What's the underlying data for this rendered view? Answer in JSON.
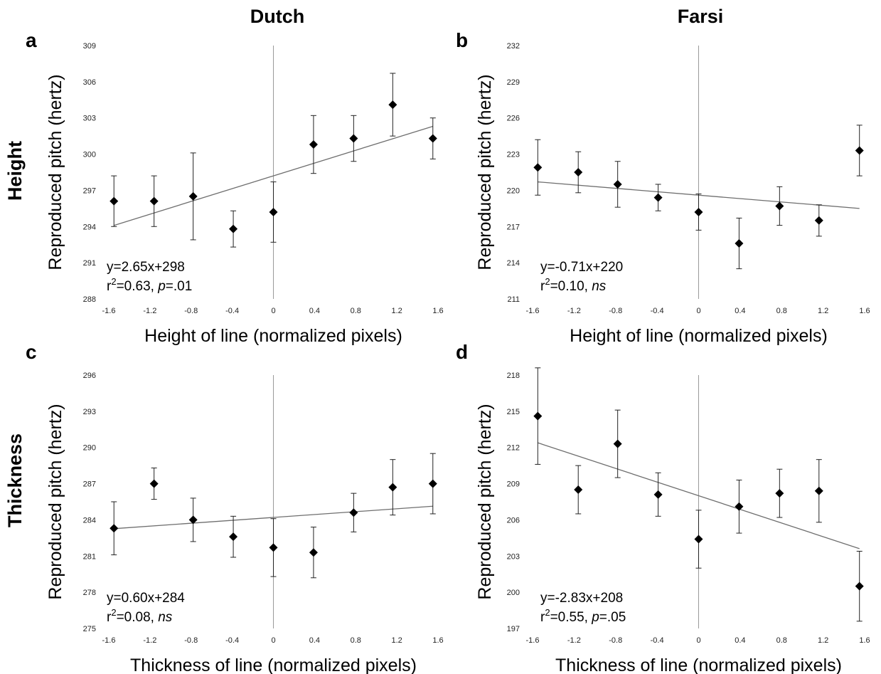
{
  "column_headers": [
    "Dutch",
    "Farsi"
  ],
  "row_headers": [
    "Height",
    "Thickness"
  ],
  "chart_data": [
    {
      "panel": "a",
      "type": "scatter",
      "xlabel": "Height of line (normalized pixels)",
      "ylabel": "Reproduced pitch (hertz)",
      "xlim": [
        -1.6,
        1.6
      ],
      "ylim": [
        288,
        309
      ],
      "x_ticks": [
        "-1.6",
        "-1.2",
        "-0.8",
        "-0.4",
        "0",
        "0.4",
        "0.8",
        "1.2",
        "1.6"
      ],
      "y_ticks": [
        "288",
        "291",
        "294",
        "297",
        "300",
        "303",
        "306",
        "309"
      ],
      "points": [
        {
          "x": -1.55,
          "y": 296.1,
          "err": 2.1
        },
        {
          "x": -1.16,
          "y": 296.1,
          "err": 2.1
        },
        {
          "x": -0.78,
          "y": 296.5,
          "err": 3.6
        },
        {
          "x": -0.39,
          "y": 293.8,
          "err": 1.5
        },
        {
          "x": 0.0,
          "y": 295.2,
          "err": 2.5
        },
        {
          "x": 0.39,
          "y": 300.8,
          "err": 2.4
        },
        {
          "x": 0.78,
          "y": 301.3,
          "err": 1.9
        },
        {
          "x": 1.16,
          "y": 304.1,
          "err": 2.6
        },
        {
          "x": 1.55,
          "y": 301.3,
          "err": 1.7
        }
      ],
      "fit": {
        "slope": 2.65,
        "intercept": 298.2
      },
      "equation": "y=2.65x+298",
      "stats": {
        "r2_prefix": "r",
        "r2_sup": "2",
        "r2_value": "=0.63, ",
        "p_label": "p",
        "p_value": "=.01"
      }
    },
    {
      "panel": "b",
      "type": "scatter",
      "xlabel": "Height of line (normalized pixels)",
      "ylabel": "Reproduced pitch (hertz)",
      "xlim": [
        -1.6,
        1.6
      ],
      "ylim": [
        211,
        232
      ],
      "x_ticks": [
        "-1.6",
        "-1.2",
        "-0.8",
        "-0.4",
        "0",
        "0.4",
        "0.8",
        "1.2",
        "1.6"
      ],
      "y_ticks": [
        "211",
        "214",
        "217",
        "220",
        "223",
        "226",
        "229",
        "232"
      ],
      "points": [
        {
          "x": -1.55,
          "y": 221.9,
          "err": 2.3
        },
        {
          "x": -1.16,
          "y": 221.5,
          "err": 1.7
        },
        {
          "x": -0.78,
          "y": 220.5,
          "err": 1.9
        },
        {
          "x": -0.39,
          "y": 219.4,
          "err": 1.1
        },
        {
          "x": 0.0,
          "y": 218.2,
          "err": 1.5
        },
        {
          "x": 0.39,
          "y": 215.6,
          "err": 2.1
        },
        {
          "x": 0.78,
          "y": 218.7,
          "err": 1.6
        },
        {
          "x": 1.16,
          "y": 217.5,
          "err": 1.3
        },
        {
          "x": 1.55,
          "y": 223.3,
          "err": 2.1
        }
      ],
      "fit": {
        "slope": -0.71,
        "intercept": 219.6
      },
      "equation": "y=-0.71x+220",
      "stats": {
        "r2_prefix": "r",
        "r2_sup": "2",
        "r2_value": "=0.10, ",
        "p_label": "ns",
        "p_value": ""
      }
    },
    {
      "panel": "c",
      "type": "scatter",
      "xlabel": "Thickness of line (normalized pixels)",
      "ylabel": "Reproduced pitch (hertz)",
      "xlim": [
        -1.6,
        1.6
      ],
      "ylim": [
        275,
        296
      ],
      "x_ticks": [
        "-1.6",
        "-1.2",
        "-0.8",
        "-0.4",
        "0",
        "0.4",
        "0.8",
        "1.2",
        "1.6"
      ],
      "y_ticks": [
        "275",
        "278",
        "281",
        "284",
        "287",
        "290",
        "293",
        "296"
      ],
      "points": [
        {
          "x": -1.55,
          "y": 283.3,
          "err": 2.2
        },
        {
          "x": -1.16,
          "y": 287.0,
          "err": 1.3
        },
        {
          "x": -0.78,
          "y": 284.0,
          "err": 1.8
        },
        {
          "x": -0.39,
          "y": 282.6,
          "err": 1.7
        },
        {
          "x": 0.0,
          "y": 281.7,
          "err": 2.4
        },
        {
          "x": 0.39,
          "y": 281.3,
          "err": 2.1
        },
        {
          "x": 0.78,
          "y": 284.6,
          "err": 1.6
        },
        {
          "x": 1.16,
          "y": 286.7,
          "err": 2.3
        },
        {
          "x": 1.55,
          "y": 287.0,
          "err": 2.5
        }
      ],
      "fit": {
        "slope": 0.6,
        "intercept": 284.2
      },
      "equation": "y=0.60x+284",
      "stats": {
        "r2_prefix": "r",
        "r2_sup": "2",
        "r2_value": "=0.08, ",
        "p_label": "ns",
        "p_value": ""
      }
    },
    {
      "panel": "d",
      "type": "scatter",
      "xlabel": "Thickness of line (normalized pixels)",
      "ylabel": "Reproduced pitch (hertz)",
      "xlim": [
        -1.6,
        1.6
      ],
      "ylim": [
        197,
        218
      ],
      "x_ticks": [
        "-1.6",
        "-1.2",
        "-0.8",
        "-0.4",
        "0",
        "0.4",
        "0.8",
        "1.2",
        "1.6"
      ],
      "y_ticks": [
        "197",
        "200",
        "203",
        "206",
        "209",
        "212",
        "215",
        "218"
      ],
      "points": [
        {
          "x": -1.55,
          "y": 214.6,
          "err": 4.0
        },
        {
          "x": -1.16,
          "y": 208.5,
          "err": 2.0
        },
        {
          "x": -0.78,
          "y": 212.3,
          "err": 2.8
        },
        {
          "x": -0.39,
          "y": 208.1,
          "err": 1.8
        },
        {
          "x": 0.0,
          "y": 204.4,
          "err": 2.4
        },
        {
          "x": 0.39,
          "y": 207.1,
          "err": 2.2
        },
        {
          "x": 0.78,
          "y": 208.2,
          "err": 2.0
        },
        {
          "x": 1.16,
          "y": 208.4,
          "err": 2.6
        },
        {
          "x": 1.55,
          "y": 200.5,
          "err": 2.9
        }
      ],
      "fit": {
        "slope": -2.83,
        "intercept": 208.0
      },
      "equation": "y=-2.83x+208",
      "stats": {
        "r2_prefix": "r",
        "r2_sup": "2",
        "r2_value": "=0.55, ",
        "p_label": "p",
        "p_value": "=.05"
      }
    }
  ]
}
